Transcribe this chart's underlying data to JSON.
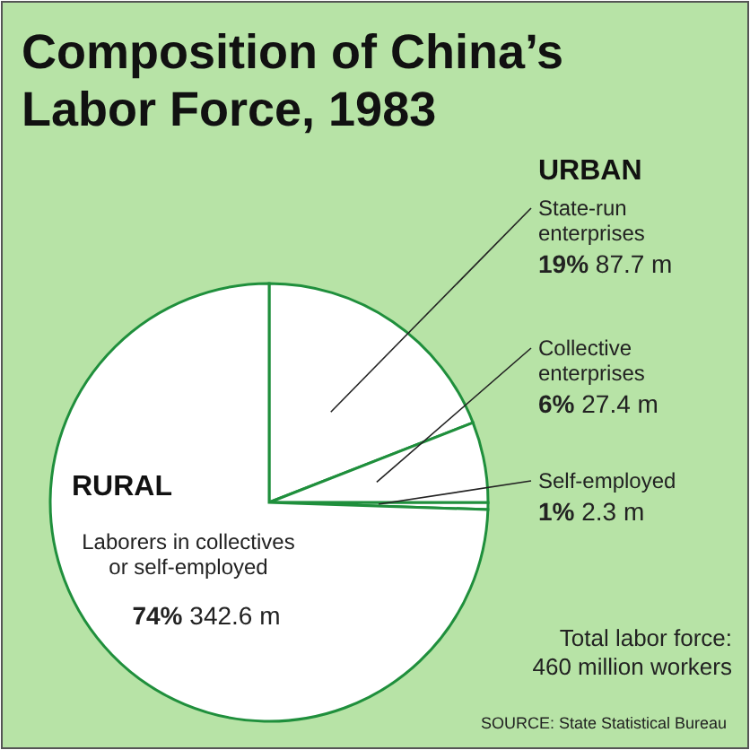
{
  "chart_data": {
    "type": "pie",
    "title": "Composition of China’s Labor Force, 1983",
    "categories": [
      "State-run enterprises",
      "Collective enterprises",
      "Self-employed",
      "Laborers in collectives or self-employed"
    ],
    "values": [
      87.7,
      27.4,
      2.3,
      342.6
    ],
    "value_labels": [
      "19% 87.7 m",
      "6% 27.4 m",
      "1% 2.3 m",
      "74% 342.6 m"
    ],
    "colors": [
      "#ffffff",
      "#ffffff",
      "#ffffff",
      "#ffffff"
    ],
    "annotations": [
      "URBAN",
      "RURAL",
      "Total labor force: 460 million workers",
      "SOURCE: State Statistical Bureau"
    ]
  }
}
